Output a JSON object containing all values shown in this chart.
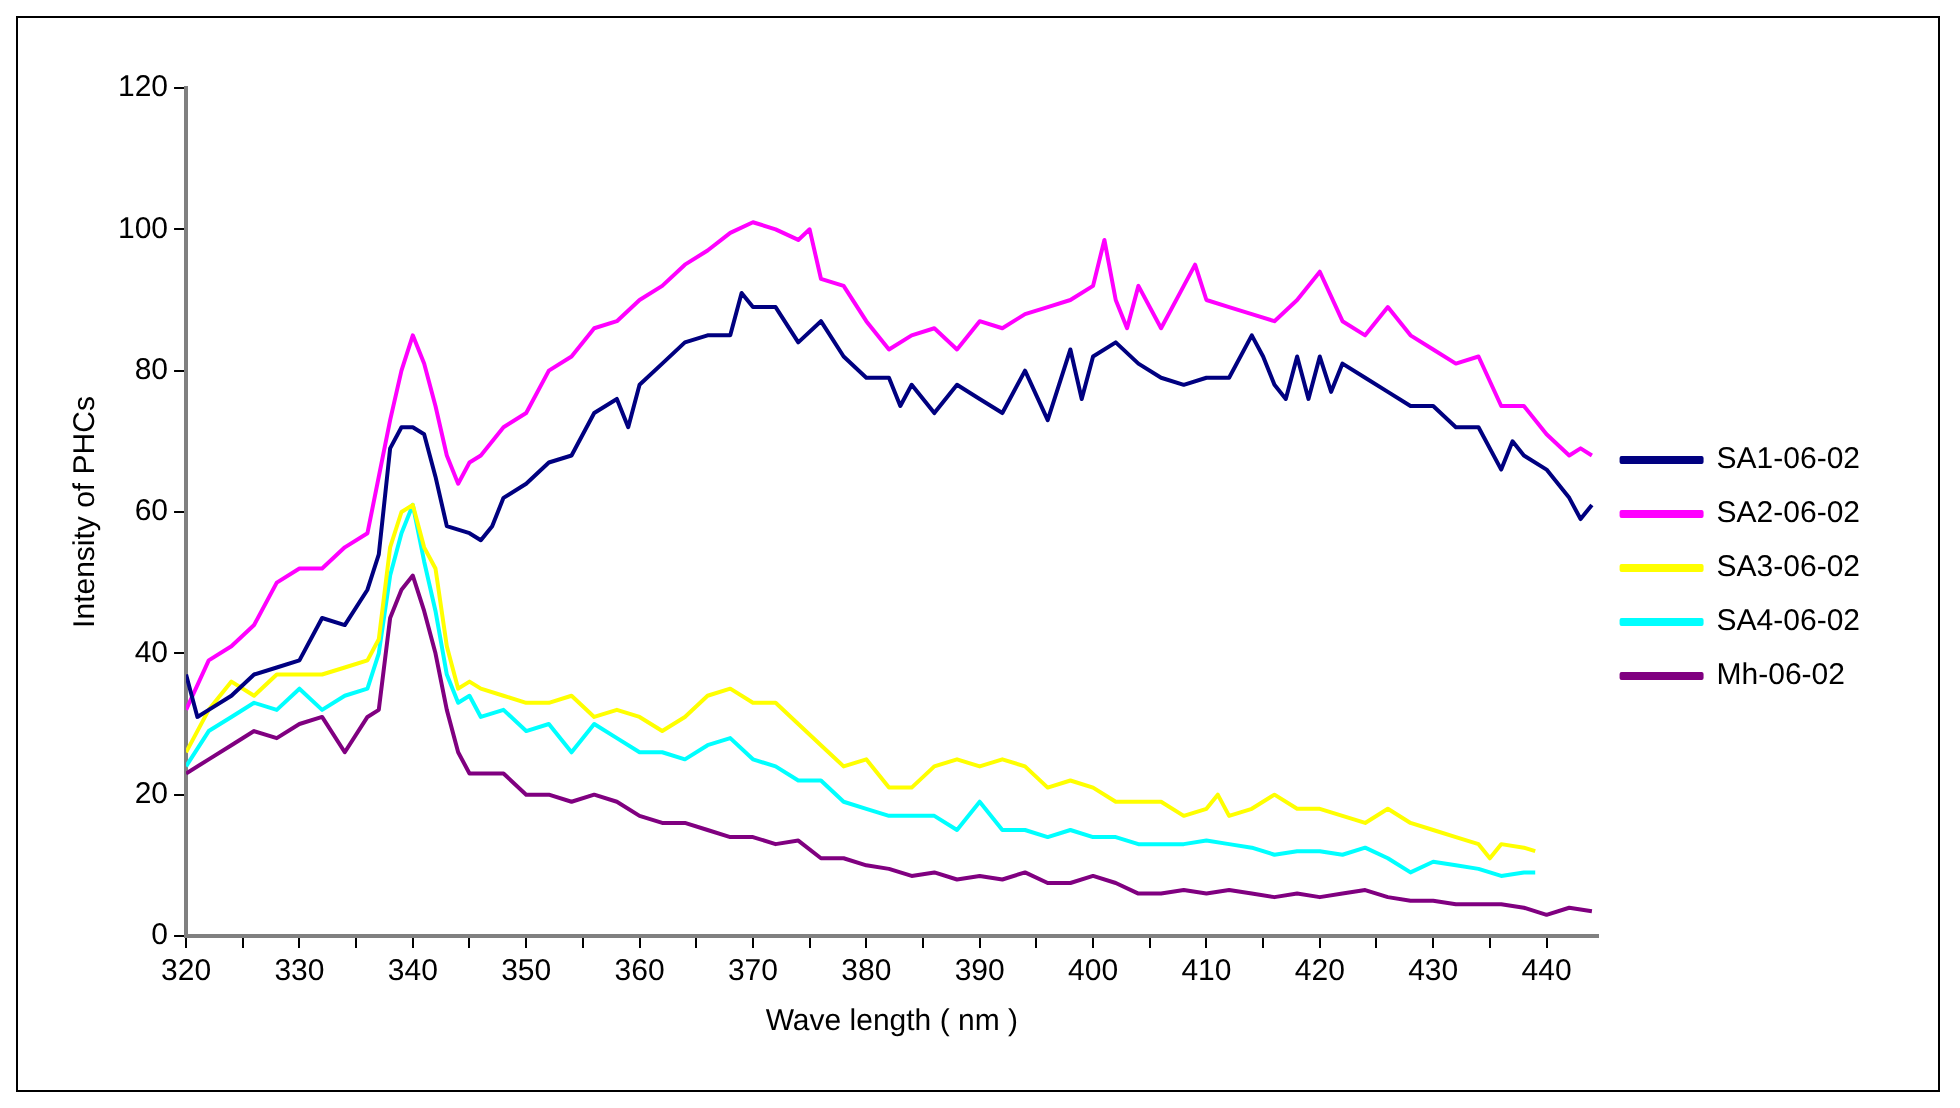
{
  "chart_data": {
    "type": "line",
    "xlabel": "Wave length ( nm )",
    "ylabel": "Intensity of PHCs",
    "xlim": [
      320,
      444.5
    ],
    "ylim": [
      0,
      120
    ],
    "xticks": [
      320,
      {
        "value": 325,
        "label": null
      },
      330,
      {
        "value": 335,
        "label": null
      },
      340,
      {
        "value": 345,
        "label": null
      },
      350,
      {
        "value": 355,
        "label": null
      },
      360,
      {
        "value": 365,
        "label": null
      },
      370,
      {
        "value": 375,
        "label": null
      },
      380,
      {
        "value": 385,
        "label": null
      },
      390,
      {
        "value": 395,
        "label": null
      },
      400,
      {
        "value": 405,
        "label": null
      },
      410,
      {
        "value": 415,
        "label": null
      },
      420,
      {
        "value": 425,
        "label": null
      },
      430,
      {
        "value": 435,
        "label": null
      },
      440
    ],
    "yticks": [
      0,
      20,
      40,
      60,
      80,
      100,
      120
    ],
    "grid": false,
    "legend": "right",
    "marker": "none",
    "line_style": "solid",
    "series": [
      {
        "name": "SA1-06-02",
        "color": "#000080",
        "x": [
          320,
          321,
          322,
          324,
          326,
          328,
          330,
          332,
          334,
          336,
          337,
          338,
          339,
          340,
          341,
          342,
          343,
          345,
          346,
          347,
          348,
          350,
          352,
          354,
          356,
          358,
          359,
          360,
          362,
          364,
          366,
          368,
          369,
          370,
          372,
          374,
          376,
          378,
          380,
          382,
          383,
          384,
          386,
          388,
          390,
          392,
          394,
          396,
          398,
          399,
          400,
          402,
          404,
          406,
          408,
          410,
          412,
          414,
          415,
          416,
          417,
          418,
          419,
          420,
          421,
          422,
          424,
          426,
          428,
          430,
          432,
          434,
          436,
          437,
          438,
          440,
          442,
          443,
          444
        ],
        "values": [
          37,
          31,
          32,
          34,
          37,
          38,
          39,
          45,
          44,
          49,
          54,
          69,
          72,
          72,
          71,
          65,
          58,
          57,
          56,
          58,
          62,
          64,
          67,
          68,
          74,
          76,
          72,
          78,
          81,
          84,
          85,
          85,
          91,
          89,
          89,
          84,
          87,
          82,
          79,
          79,
          75,
          78,
          74,
          78,
          76,
          74,
          80,
          73,
          83,
          76,
          82,
          84,
          81,
          79,
          78,
          79,
          79,
          85,
          82,
          78,
          76,
          82,
          76,
          82,
          77,
          81,
          79,
          77,
          75,
          75,
          72,
          72,
          66,
          70,
          68,
          66,
          62,
          59,
          61
        ]
      },
      {
        "name": "SA2-06-02",
        "color": "#ff00ff",
        "x": [
          320,
          322,
          324,
          326,
          328,
          330,
          332,
          334,
          336,
          338,
          339,
          340,
          341,
          342,
          343,
          344,
          345,
          346,
          348,
          350,
          352,
          354,
          356,
          358,
          360,
          362,
          364,
          366,
          368,
          370,
          372,
          374,
          375,
          376,
          378,
          380,
          382,
          384,
          386,
          388,
          390,
          392,
          394,
          396,
          398,
          400,
          401,
          402,
          403,
          404,
          406,
          408,
          409,
          410,
          412,
          414,
          416,
          418,
          420,
          422,
          424,
          426,
          428,
          430,
          432,
          434,
          436,
          438,
          440,
          442,
          443,
          444
        ],
        "values": [
          32,
          39,
          41,
          44,
          50,
          52,
          52,
          55,
          57,
          73,
          80,
          85,
          81,
          75,
          68,
          64,
          67,
          68,
          72,
          74,
          80,
          82,
          86,
          87,
          90,
          92,
          95,
          97,
          99.5,
          101,
          100,
          98.5,
          100,
          93,
          92,
          87,
          83,
          85,
          86,
          83,
          87,
          86,
          88,
          89,
          90,
          92,
          98.5,
          90,
          86,
          92,
          86,
          92,
          95,
          90,
          89,
          88,
          87,
          90,
          94,
          87,
          85,
          89,
          85,
          83,
          81,
          82,
          75,
          75,
          71,
          68,
          69,
          68
        ]
      },
      {
        "name": "SA3-06-02",
        "color": "#ffff00",
        "x": [
          320,
          322,
          324,
          326,
          328,
          330,
          332,
          334,
          336,
          337,
          338,
          339,
          340,
          341,
          342,
          343,
          344,
          345,
          346,
          348,
          350,
          352,
          354,
          356,
          358,
          360,
          362,
          364,
          366,
          368,
          370,
          372,
          374,
          376,
          378,
          380,
          382,
          384,
          386,
          388,
          390,
          392,
          394,
          396,
          398,
          400,
          402,
          404,
          406,
          408,
          410,
          411,
          412,
          414,
          416,
          418,
          420,
          422,
          424,
          426,
          428,
          430,
          432,
          434,
          435,
          436,
          438,
          439
        ],
        "values": [
          26,
          32,
          36,
          34,
          37,
          37,
          37,
          38,
          39,
          42,
          55,
          60,
          61,
          55,
          52,
          41,
          35,
          36,
          35,
          34,
          33,
          33,
          34,
          31,
          32,
          31,
          29,
          31,
          34,
          35,
          33,
          33,
          30,
          27,
          24,
          25,
          21,
          21,
          24,
          25,
          24,
          25,
          24,
          21,
          22,
          21,
          19,
          19,
          19,
          17,
          18,
          20,
          17,
          18,
          20,
          18,
          18,
          17,
          16,
          18,
          16,
          15,
          14,
          13,
          11,
          13,
          12.5,
          12
        ]
      },
      {
        "name": "SA4-06-02",
        "color": "#00ffff",
        "x": [
          320,
          322,
          324,
          326,
          328,
          330,
          332,
          334,
          336,
          337,
          338,
          339,
          340,
          341,
          342,
          343,
          344,
          345,
          346,
          348,
          350,
          352,
          354,
          356,
          358,
          360,
          362,
          364,
          366,
          368,
          370,
          372,
          374,
          376,
          378,
          380,
          382,
          384,
          386,
          388,
          390,
          392,
          394,
          396,
          398,
          400,
          402,
          404,
          406,
          408,
          410,
          412,
          414,
          416,
          418,
          420,
          422,
          424,
          426,
          428,
          430,
          432,
          434,
          436,
          438,
          439
        ],
        "values": [
          24,
          29,
          31,
          33,
          32,
          35,
          32,
          34,
          35,
          40,
          51,
          57,
          61,
          53,
          46,
          37,
          33,
          34,
          31,
          32,
          29,
          30,
          26,
          30,
          28,
          26,
          26,
          25,
          27,
          28,
          25,
          24,
          22,
          22,
          19,
          18,
          17,
          17,
          17,
          15,
          19,
          15,
          15,
          14,
          15,
          14,
          14,
          13,
          13,
          13,
          13.5,
          13,
          12.5,
          11.5,
          12,
          12,
          11.5,
          12.5,
          11,
          9,
          10.5,
          10,
          9.5,
          8.5,
          9,
          9
        ]
      },
      {
        "name": "Mh-06-02",
        "color": "#800080",
        "x": [
          320,
          322,
          324,
          326,
          328,
          330,
          332,
          334,
          336,
          337,
          338,
          339,
          340,
          341,
          342,
          343,
          344,
          345,
          346,
          348,
          350,
          352,
          354,
          356,
          358,
          360,
          362,
          364,
          366,
          368,
          370,
          372,
          374,
          376,
          378,
          380,
          382,
          384,
          386,
          388,
          390,
          392,
          394,
          396,
          398,
          400,
          402,
          404,
          406,
          408,
          410,
          412,
          414,
          416,
          418,
          420,
          422,
          424,
          426,
          428,
          430,
          432,
          434,
          436,
          438,
          440,
          442,
          444
        ],
        "values": [
          23,
          25,
          27,
          29,
          28,
          30,
          31,
          26,
          31,
          32,
          45,
          49,
          51,
          46,
          40,
          32,
          26,
          23,
          23,
          23,
          20,
          20,
          19,
          20,
          19,
          17,
          16,
          16,
          15,
          14,
          14,
          13,
          13.5,
          11,
          11,
          10,
          9.5,
          8.5,
          9,
          8,
          8.5,
          8,
          9,
          7.5,
          7.5,
          8.5,
          7.5,
          6,
          6,
          6.5,
          6,
          6.5,
          6,
          5.5,
          6,
          5.5,
          6,
          6.5,
          5.5,
          5,
          5,
          4.5,
          4.5,
          4.5,
          4,
          3,
          4,
          3.5
        ]
      }
    ]
  }
}
